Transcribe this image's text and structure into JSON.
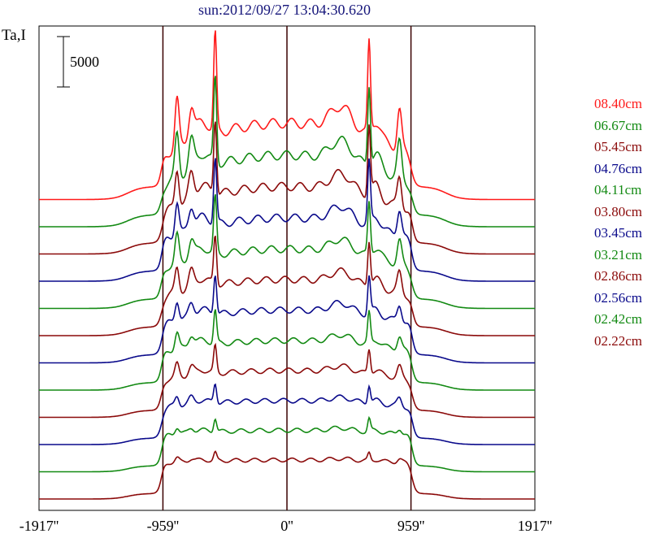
{
  "chart_data": {
    "type": "line",
    "title": "sun:2012/09/27 13:04:30.620",
    "ylabel": "Ta,I",
    "scale_bar_label": "5000",
    "scale_bar_value": 5000,
    "x_ticks": [
      "-1917''",
      "-959''",
      "0''",
      "959''",
      "1917''"
    ],
    "x_tick_values": [
      -1917,
      -959,
      0,
      959,
      1917
    ],
    "xlim": [
      -1917,
      1917
    ],
    "vertical_lines_at": [
      -959,
      0,
      959
    ],
    "grid": false,
    "legend_placement": "right",
    "series": [
      {
        "name": "08.40cm",
        "color": "#ff1a1a",
        "offset": 11,
        "peak": 1.0
      },
      {
        "name": "06.67cm",
        "color": "#138a13",
        "offset": 10,
        "peak": 0.88
      },
      {
        "name": "05.45cm",
        "color": "#8b0a0a",
        "offset": 9,
        "peak": 0.78
      },
      {
        "name": "04.76cm",
        "color": "#0a0a8b",
        "offset": 8,
        "peak": 0.68
      },
      {
        "name": "04.11cm",
        "color": "#138a13",
        "offset": 7,
        "peak": 0.58
      },
      {
        "name": "03.80cm",
        "color": "#8b0a0a",
        "offset": 6,
        "peak": 0.5
      },
      {
        "name": "03.45cm",
        "color": "#0a0a8b",
        "offset": 5,
        "peak": 0.42
      },
      {
        "name": "03.21cm",
        "color": "#138a13",
        "offset": 4,
        "peak": 0.34
      },
      {
        "name": "02.86cm",
        "color": "#8b0a0a",
        "offset": 3,
        "peak": 0.27
      },
      {
        "name": "02.56cm",
        "color": "#0a0a8b",
        "offset": 2,
        "peak": 0.2
      },
      {
        "name": "02.42cm",
        "color": "#138a13",
        "offset": 1,
        "peak": 0.14
      },
      {
        "name": "02.22cm",
        "color": "#8b0a0a",
        "offset": 0,
        "peak": 0.08
      }
    ]
  }
}
